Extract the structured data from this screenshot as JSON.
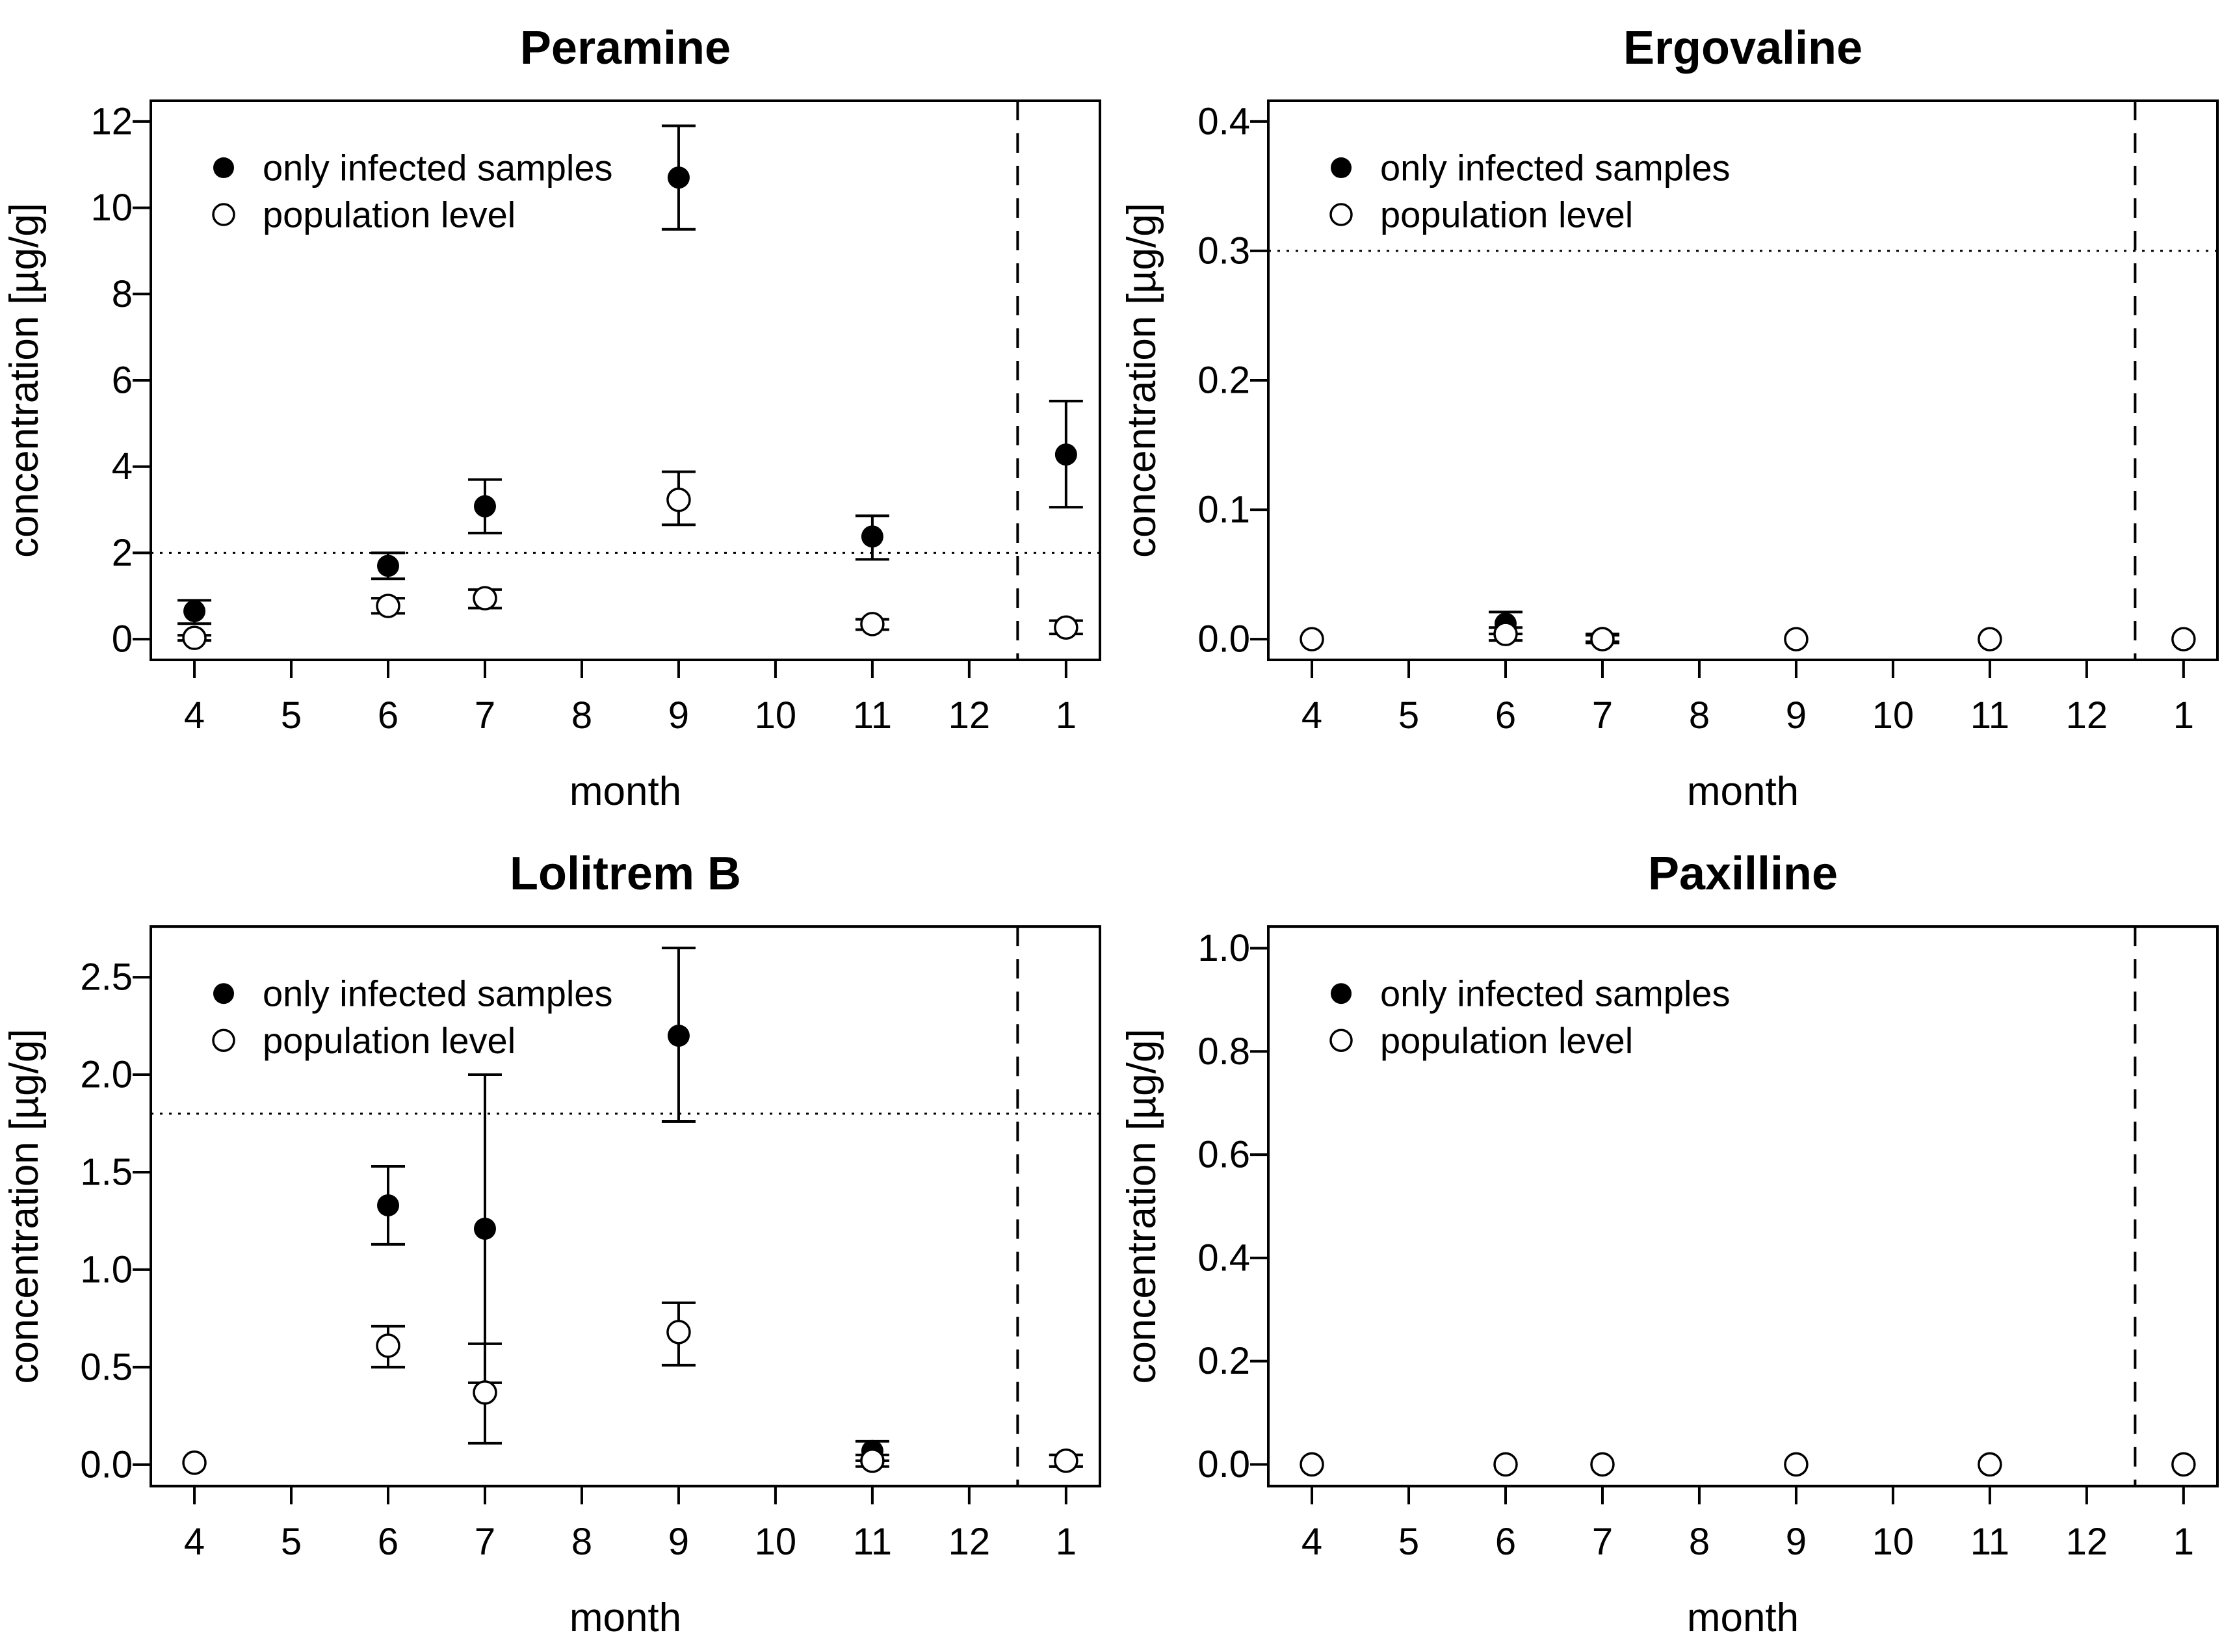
{
  "figure": {
    "background": "#ffffff",
    "foreground": "#000000"
  },
  "legend": {
    "items": [
      {
        "label": "only infected samples",
        "marker": "filled-circle"
      },
      {
        "label": "population level",
        "marker": "open-circle"
      }
    ]
  },
  "chart_data": [
    {
      "type": "scatter",
      "title": "Peramine",
      "xlabel": "month",
      "ylabel": "concentration [µg/g]",
      "xlim": [
        3.55,
        13.35
      ],
      "ylim": [
        -0.48,
        12.48
      ],
      "x_ticks": [
        {
          "pos": 4,
          "label": "4"
        },
        {
          "pos": 5,
          "label": "5"
        },
        {
          "pos": 6,
          "label": "6"
        },
        {
          "pos": 7,
          "label": "7"
        },
        {
          "pos": 8,
          "label": "8"
        },
        {
          "pos": 9,
          "label": "9"
        },
        {
          "pos": 10,
          "label": "10"
        },
        {
          "pos": 11,
          "label": "11"
        },
        {
          "pos": 12,
          "label": "12"
        },
        {
          "pos": 13,
          "label": "1"
        }
      ],
      "y_ticks": [
        {
          "pos": 0,
          "label": "0"
        },
        {
          "pos": 2,
          "label": "2"
        },
        {
          "pos": 4,
          "label": "4"
        },
        {
          "pos": 6,
          "label": "6"
        },
        {
          "pos": 8,
          "label": "8"
        },
        {
          "pos": 10,
          "label": "10"
        },
        {
          "pos": 12,
          "label": "12"
        }
      ],
      "threshold_line_y": 2,
      "separator_line_x": 12.5,
      "grid": false,
      "legend_position": "top-left",
      "series": [
        {
          "name": "only infected samples",
          "marker": "filled-circle",
          "points": [
            {
              "x": 4,
              "y": 0.65,
              "lo": 0.36,
              "hi": 0.9
            },
            {
              "x": 6,
              "y": 1.7,
              "lo": 1.4,
              "hi": 2.0
            },
            {
              "x": 7,
              "y": 3.08,
              "lo": 2.46,
              "hi": 3.7
            },
            {
              "x": 9,
              "y": 10.7,
              "lo": 9.5,
              "hi": 11.9
            },
            {
              "x": 11,
              "y": 2.38,
              "lo": 1.85,
              "hi": 2.86
            },
            {
              "x": 13,
              "y": 4.28,
              "lo": 3.06,
              "hi": 5.52
            }
          ]
        },
        {
          "name": "population level",
          "marker": "open-circle",
          "points": [
            {
              "x": 4,
              "y": 0.03,
              "lo": -0.03,
              "hi": 0.09
            },
            {
              "x": 6,
              "y": 0.77,
              "lo": 0.6,
              "hi": 0.95
            },
            {
              "x": 7,
              "y": 0.95,
              "lo": 0.72,
              "hi": 1.15
            },
            {
              "x": 9,
              "y": 3.23,
              "lo": 2.65,
              "hi": 3.88
            },
            {
              "x": 11,
              "y": 0.35,
              "lo": 0.22,
              "hi": 0.46
            },
            {
              "x": 13,
              "y": 0.27,
              "lo": 0.12,
              "hi": 0.43
            }
          ]
        }
      ]
    },
    {
      "type": "scatter",
      "title": "Ergovaline",
      "xlabel": "month",
      "ylabel": "concentration [µg/g]",
      "xlim": [
        3.55,
        13.35
      ],
      "ylim": [
        -0.016,
        0.416
      ],
      "x_ticks": [
        {
          "pos": 4,
          "label": "4"
        },
        {
          "pos": 5,
          "label": "5"
        },
        {
          "pos": 6,
          "label": "6"
        },
        {
          "pos": 7,
          "label": "7"
        },
        {
          "pos": 8,
          "label": "8"
        },
        {
          "pos": 9,
          "label": "9"
        },
        {
          "pos": 10,
          "label": "10"
        },
        {
          "pos": 11,
          "label": "11"
        },
        {
          "pos": 12,
          "label": "12"
        },
        {
          "pos": 13,
          "label": "1"
        }
      ],
      "y_ticks": [
        {
          "pos": 0,
          "label": "0.0"
        },
        {
          "pos": 0.1,
          "label": "0.1"
        },
        {
          "pos": 0.2,
          "label": "0.2"
        },
        {
          "pos": 0.3,
          "label": "0.3"
        },
        {
          "pos": 0.4,
          "label": "0.4"
        }
      ],
      "threshold_line_y": 0.3,
      "separator_line_x": 12.5,
      "grid": false,
      "legend_position": "top-left",
      "series": [
        {
          "name": "only infected samples",
          "marker": "filled-circle",
          "points": [
            {
              "x": 6,
              "y": 0.012,
              "lo": 0.004,
              "hi": 0.021
            },
            {
              "x": 7,
              "y": 0.001,
              "lo": -0.002,
              "hi": 0.004
            }
          ]
        },
        {
          "name": "population level",
          "marker": "open-circle",
          "points": [
            {
              "x": 4,
              "y": 0.0,
              "lo": null,
              "hi": null
            },
            {
              "x": 6,
              "y": 0.004,
              "lo": -0.001,
              "hi": 0.009
            },
            {
              "x": 7,
              "y": 0.0,
              "lo": -0.003,
              "hi": 0.003
            },
            {
              "x": 9,
              "y": 0.0,
              "lo": null,
              "hi": null
            },
            {
              "x": 11,
              "y": 0.0,
              "lo": null,
              "hi": null
            },
            {
              "x": 13,
              "y": 0.0,
              "lo": null,
              "hi": null
            }
          ]
        }
      ]
    },
    {
      "type": "scatter",
      "title": "Lolitrem B",
      "xlabel": "month",
      "ylabel": "concentration [µg/g]",
      "xlim": [
        3.55,
        13.35
      ],
      "ylim": [
        -0.11,
        2.76
      ],
      "x_ticks": [
        {
          "pos": 4,
          "label": "4"
        },
        {
          "pos": 5,
          "label": "5"
        },
        {
          "pos": 6,
          "label": "6"
        },
        {
          "pos": 7,
          "label": "7"
        },
        {
          "pos": 8,
          "label": "8"
        },
        {
          "pos": 9,
          "label": "9"
        },
        {
          "pos": 10,
          "label": "10"
        },
        {
          "pos": 11,
          "label": "11"
        },
        {
          "pos": 12,
          "label": "12"
        },
        {
          "pos": 13,
          "label": "1"
        }
      ],
      "y_ticks": [
        {
          "pos": 0,
          "label": "0.0"
        },
        {
          "pos": 0.5,
          "label": "0.5"
        },
        {
          "pos": 1.0,
          "label": "1.0"
        },
        {
          "pos": 1.5,
          "label": "1.5"
        },
        {
          "pos": 2.0,
          "label": "2.0"
        },
        {
          "pos": 2.5,
          "label": "2.5"
        }
      ],
      "threshold_line_y": 1.8,
      "separator_line_x": 12.5,
      "grid": false,
      "legend_position": "top-left",
      "series": [
        {
          "name": "only infected samples",
          "marker": "filled-circle",
          "points": [
            {
              "x": 6,
              "y": 1.33,
              "lo": 1.13,
              "hi": 1.53
            },
            {
              "x": 7,
              "y": 1.21,
              "lo": 0.42,
              "hi": 2.0
            },
            {
              "x": 9,
              "y": 2.2,
              "lo": 1.76,
              "hi": 2.65
            },
            {
              "x": 11,
              "y": 0.07,
              "lo": 0.02,
              "hi": 0.12
            },
            {
              "x": 13,
              "y": 0.02,
              "lo": -0.01,
              "hi": 0.05
            }
          ]
        },
        {
          "name": "population level",
          "marker": "open-circle",
          "points": [
            {
              "x": 4,
              "y": 0.01,
              "lo": null,
              "hi": null
            },
            {
              "x": 6,
              "y": 0.61,
              "lo": 0.5,
              "hi": 0.71
            },
            {
              "x": 7,
              "y": 0.37,
              "lo": 0.11,
              "hi": 0.62
            },
            {
              "x": 9,
              "y": 0.68,
              "lo": 0.51,
              "hi": 0.83
            },
            {
              "x": 11,
              "y": 0.02,
              "lo": -0.01,
              "hi": 0.05
            },
            {
              "x": 13,
              "y": 0.02,
              "lo": -0.01,
              "hi": 0.05
            }
          ]
        }
      ]
    },
    {
      "type": "scatter",
      "title": "Paxilline",
      "xlabel": "month",
      "ylabel": "concentration [µg/g]",
      "xlim": [
        3.55,
        13.35
      ],
      "ylim": [
        -0.042,
        1.042
      ],
      "x_ticks": [
        {
          "pos": 4,
          "label": "4"
        },
        {
          "pos": 5,
          "label": "5"
        },
        {
          "pos": 6,
          "label": "6"
        },
        {
          "pos": 7,
          "label": "7"
        },
        {
          "pos": 8,
          "label": "8"
        },
        {
          "pos": 9,
          "label": "9"
        },
        {
          "pos": 10,
          "label": "10"
        },
        {
          "pos": 11,
          "label": "11"
        },
        {
          "pos": 12,
          "label": "12"
        },
        {
          "pos": 13,
          "label": "1"
        }
      ],
      "y_ticks": [
        {
          "pos": 0,
          "label": "0.0"
        },
        {
          "pos": 0.2,
          "label": "0.2"
        },
        {
          "pos": 0.4,
          "label": "0.4"
        },
        {
          "pos": 0.6,
          "label": "0.6"
        },
        {
          "pos": 0.8,
          "label": "0.8"
        },
        {
          "pos": 1.0,
          "label": "1.0"
        }
      ],
      "threshold_line_y": null,
      "separator_line_x": 12.5,
      "grid": false,
      "legend_position": "top-left",
      "series": [
        {
          "name": "only infected samples",
          "marker": "filled-circle",
          "points": []
        },
        {
          "name": "population level",
          "marker": "open-circle",
          "points": [
            {
              "x": 4,
              "y": 0.0,
              "lo": null,
              "hi": null
            },
            {
              "x": 6,
              "y": 0.0,
              "lo": null,
              "hi": null
            },
            {
              "x": 7,
              "y": 0.0,
              "lo": null,
              "hi": null
            },
            {
              "x": 9,
              "y": 0.0,
              "lo": null,
              "hi": null
            },
            {
              "x": 11,
              "y": 0.0,
              "lo": null,
              "hi": null
            },
            {
              "x": 13,
              "y": 0.0,
              "lo": null,
              "hi": null
            }
          ]
        }
      ]
    }
  ]
}
